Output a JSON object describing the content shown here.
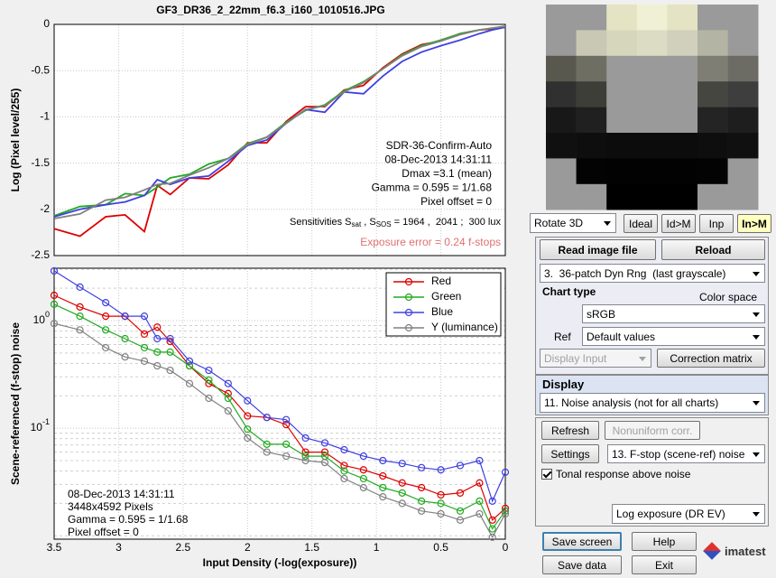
{
  "chart_data": [
    {
      "type": "line",
      "title": "GF3_DR36_2_22mm_f6.3_i160_1010516.JPG",
      "ylabel": "Log (Pixel level/255)",
      "xlim": [
        3.5,
        0
      ],
      "ylim": [
        -2.5,
        0
      ],
      "xticks": [
        3.5,
        3,
        2.5,
        2,
        1.5,
        1,
        0.5,
        0
      ],
      "xtick_labels": false,
      "yticks": [
        0,
        -0.5,
        -1,
        -1.5,
        -2,
        -2.5
      ],
      "grid": true,
      "markers": false,
      "x": [
        3.5,
        3.3,
        3.1,
        2.95,
        2.8,
        2.7,
        2.6,
        2.45,
        2.3,
        2.15,
        2.0,
        1.85,
        1.7,
        1.55,
        1.4,
        1.25,
        1.1,
        0.95,
        0.8,
        0.65,
        0.5,
        0.35,
        0.2,
        0.1,
        0.0
      ],
      "series": [
        {
          "name": "Red",
          "color": "#dd0000",
          "values": [
            -2.21,
            -2.29,
            -2.08,
            -2.06,
            -2.24,
            -1.74,
            -1.84,
            -1.66,
            -1.67,
            -1.52,
            -1.28,
            -1.28,
            -1.05,
            -0.89,
            -0.89,
            -0.71,
            -0.66,
            -0.47,
            -0.32,
            -0.22,
            -0.18,
            -0.1,
            -0.06,
            -0.05,
            -0.03
          ]
        },
        {
          "name": "Green",
          "color": "#22aa22",
          "values": [
            -2.07,
            -1.97,
            -1.95,
            -1.83,
            -1.85,
            -1.76,
            -1.66,
            -1.62,
            -1.51,
            -1.45,
            -1.29,
            -1.22,
            -1.06,
            -0.93,
            -0.87,
            -0.72,
            -0.62,
            -0.48,
            -0.33,
            -0.23,
            -0.17,
            -0.1,
            -0.06,
            -0.04,
            -0.02
          ]
        },
        {
          "name": "Blue",
          "color": "#4040e0",
          "values": [
            -2.08,
            -2.0,
            -1.95,
            -1.92,
            -1.85,
            -1.68,
            -1.73,
            -1.66,
            -1.64,
            -1.48,
            -1.31,
            -1.25,
            -1.07,
            -0.92,
            -0.95,
            -0.73,
            -0.75,
            -0.56,
            -0.4,
            -0.3,
            -0.23,
            -0.17,
            -0.1,
            -0.06,
            -0.03
          ]
        },
        {
          "name": "Y (luminance)",
          "color": "#808080",
          "values": [
            -2.1,
            -2.05,
            -1.9,
            -1.87,
            -1.79,
            -1.73,
            -1.72,
            -1.63,
            -1.55,
            -1.45,
            -1.3,
            -1.22,
            -1.07,
            -0.92,
            -0.88,
            -0.73,
            -0.63,
            -0.48,
            -0.34,
            -0.24,
            -0.18,
            -0.11,
            -0.06,
            -0.04,
            -0.02
          ]
        }
      ],
      "annotations": [
        "SDR-36-Confirm-Auto",
        "08-Dec-2013 14:31:11",
        "Dmax =3.1 (mean)",
        "Gamma = 0.595 = 1/1.68",
        "Pixel offset = 0"
      ],
      "sensitivities": [
        "Sensitivities S",
        "sat",
        " , S",
        "SOS",
        " = 1964 ,  2041 ;  300 lux"
      ],
      "exposure_error": "Exposure error = 0.24 f-stops"
    },
    {
      "type": "line",
      "xlabel": "Input Density (-log(exposure))",
      "ylabel": "Scene-referenced (f-stop) noise",
      "xlim": [
        3.5,
        0
      ],
      "ylim": [
        0.0093,
        3.07
      ],
      "log_y": true,
      "xticks": [
        3.5,
        3,
        2.5,
        2,
        1.5,
        1,
        0.5,
        0
      ],
      "xtick_labels": true,
      "yticks": [
        {
          "value": 1,
          "label": "10",
          "exponent": "0"
        },
        {
          "value": 0.1,
          "label": "10",
          "exponent": "-1"
        }
      ],
      "yminorticks": [
        0.01,
        0.02,
        0.03,
        0.04,
        0.05,
        0.06,
        0.07,
        0.08,
        0.09,
        0.2,
        0.3,
        0.4,
        0.5,
        0.6,
        0.7,
        0.8,
        0.9,
        2,
        3
      ],
      "grid": true,
      "markers": true,
      "legend": "upper right",
      "x": [
        3.5,
        3.3,
        3.1,
        2.95,
        2.8,
        2.7,
        2.6,
        2.45,
        2.3,
        2.15,
        2.0,
        1.85,
        1.7,
        1.55,
        1.4,
        1.25,
        1.1,
        0.95,
        0.8,
        0.65,
        0.5,
        0.35,
        0.2,
        0.1,
        0.0
      ],
      "series": [
        {
          "name": "Red",
          "color": "#dd0000",
          "values": [
            1.72,
            1.34,
            1.1,
            1.1,
            0.75,
            0.87,
            0.64,
            0.38,
            0.26,
            0.21,
            0.13,
            0.126,
            0.108,
            0.06,
            0.06,
            0.045,
            0.041,
            0.036,
            0.031,
            0.028,
            0.024,
            0.025,
            0.031,
            0.014,
            0.018
          ]
        },
        {
          "name": "Green",
          "color": "#22aa22",
          "values": [
            1.42,
            1.1,
            0.82,
            0.68,
            0.56,
            0.51,
            0.51,
            0.38,
            0.28,
            0.19,
            0.098,
            0.071,
            0.071,
            0.055,
            0.055,
            0.04,
            0.034,
            0.028,
            0.025,
            0.021,
            0.02,
            0.017,
            0.021,
            0.0116,
            0.017
          ]
        },
        {
          "name": "Blue",
          "color": "#4040e0",
          "values": [
            2.9,
            2.05,
            1.47,
            1.1,
            1.1,
            0.68,
            0.68,
            0.42,
            0.345,
            0.26,
            0.18,
            0.126,
            0.12,
            0.081,
            0.073,
            0.063,
            0.055,
            0.05,
            0.047,
            0.043,
            0.041,
            0.045,
            0.05,
            0.021,
            0.039
          ]
        },
        {
          "name": "Y (luminance)",
          "color": "#808080",
          "values": [
            0.94,
            0.82,
            0.56,
            0.46,
            0.42,
            0.38,
            0.345,
            0.26,
            0.19,
            0.145,
            0.081,
            0.06,
            0.055,
            0.05,
            0.048,
            0.034,
            0.028,
            0.023,
            0.02,
            0.017,
            0.016,
            0.014,
            0.016,
            0.0097,
            0.016
          ]
        }
      ],
      "annotations": [
        "08-Dec-2013 14:31:11",
        "3448x4592 Pixels",
        "Gamma = 0.595 = 1/1.68",
        "Pixel offset = 0"
      ]
    }
  ],
  "panel": {
    "view_menu": "Rotate 3D",
    "view_buttons": [
      "Ideal",
      "Id>M",
      "Inp",
      "In>M"
    ],
    "read_button": "Read image file",
    "reload_button": "Reload",
    "chart_menu": "3.  36-patch Dyn Rng  (last grayscale)",
    "chart_type_label": "Chart type",
    "color_space_label": "Color space",
    "color_space_menu": "sRGB",
    "ref_label": "Ref",
    "ref_menu": "Default values",
    "display_input_menu": "Display Input",
    "correction_button": "Correction matrix",
    "display_label": "Display",
    "display_menu": "11. Noise analysis (not for all charts)",
    "refresh_button": "Refresh",
    "nonuniform_button": "Nonuniform corr.",
    "settings_button": "Settings",
    "plot_menu": "13. F-stop (scene-ref) noise",
    "tonal_checkbox": "Tonal response above noise",
    "exposure_menu": "Log exposure (DR EV)",
    "save_screen_button": "Save screen",
    "help_button": "Help",
    "save_data_button": "Save data",
    "exit_button": "Exit",
    "logo": "imatest"
  }
}
